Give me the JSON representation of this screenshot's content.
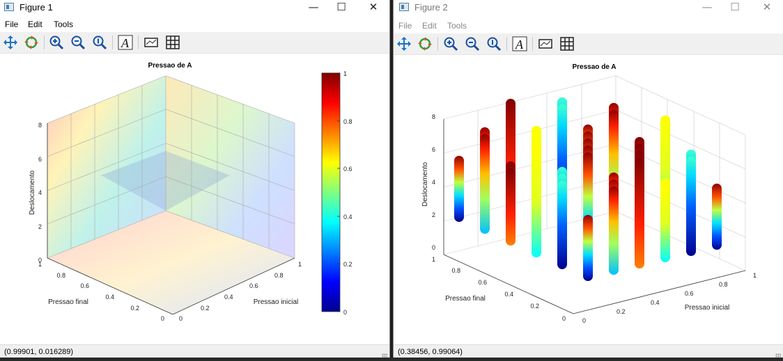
{
  "figure1": {
    "title": "Figure 1",
    "menu": [
      "File",
      "Edit",
      "Tools"
    ],
    "status": "(0.99901, 0.016289)",
    "plot": {
      "title": "Pressao de A",
      "xlabel": "Pressao final",
      "ylabel": "Pressao inicial",
      "zlabel": "Deslocamento",
      "x_ticks": [
        "1",
        "0.8",
        "0.6",
        "0.4",
        "0.2",
        "0"
      ],
      "y_ticks": [
        "0",
        "0.2",
        "0.4",
        "0.6",
        "0.8",
        "1"
      ],
      "z_ticks": [
        "0",
        "2",
        "4",
        "6",
        "8"
      ],
      "colorbar_ticks": [
        "0",
        "0.2",
        "0.4",
        "0.6",
        "0.8",
        "1"
      ]
    }
  },
  "figure2": {
    "title": "Figure 2",
    "menu": [
      "File",
      "Edit",
      "Tools"
    ],
    "status": "(0.38456, 0.99064)",
    "plot": {
      "title": "Pressao de A",
      "xlabel": "Pressao final",
      "ylabel": "Pressao inicial",
      "zlabel": "Deslocamento",
      "x_ticks": [
        "1",
        "0.8",
        "0.6",
        "0.4",
        "0.2",
        "0"
      ],
      "y_ticks": [
        "0",
        "0.2",
        "0.4",
        "0.6",
        "0.8",
        "1"
      ],
      "z_ticks": [
        "0",
        "2",
        "4",
        "6",
        "8"
      ]
    }
  },
  "window_controls": {
    "minimize": "—",
    "maximize": "☐",
    "close": "✕"
  },
  "toolbar_icons": [
    "pan-icon",
    "rotate-icon",
    "zoom-in-icon",
    "zoom-out-icon",
    "zoom-reset-icon",
    "text-icon",
    "legend-icon",
    "grid-icon"
  ],
  "colors": {
    "jet_low": "#00008f",
    "jet_mid": "#80ff80",
    "jet_high": "#800000",
    "toolbar_bg": "#f0f0f0"
  }
}
